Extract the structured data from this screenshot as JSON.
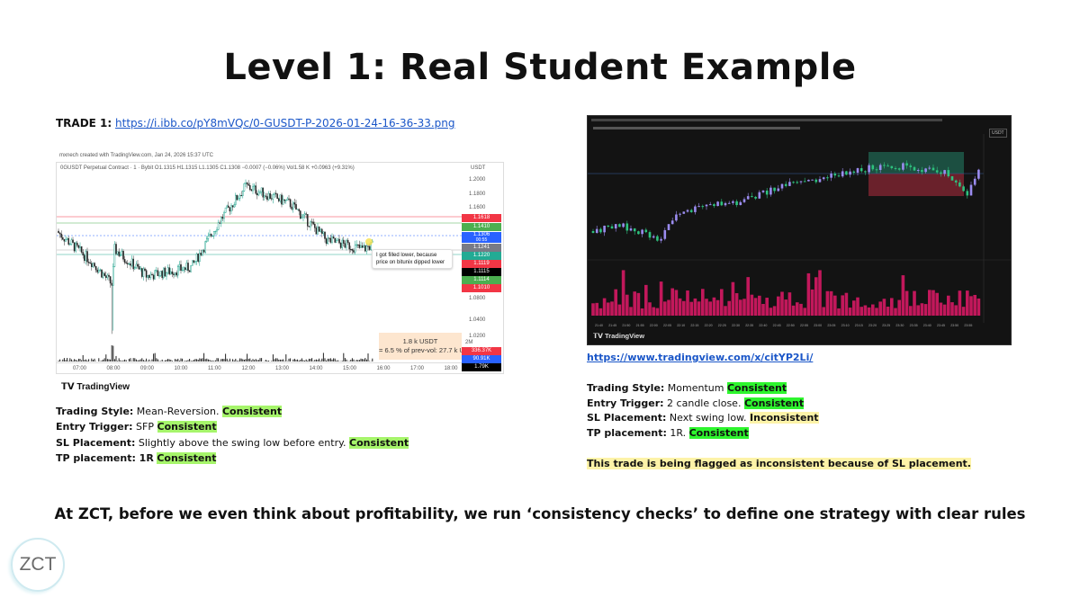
{
  "title": "Level 1: Real Student Example",
  "trade1": {
    "label": "TRADE 1:",
    "link": "https://i.ibb.co/pY8mVQc/0-GUSDT-P-2026-01-24-16-36-33.png"
  },
  "left_chart": {
    "credit": "mxnech created with TradingView.com, Jan 24, 2026 15:37 UTC",
    "symbol_line": "0GUSDT Perpetual Contract · 1 · Bybit  O1.1315  H1.1315  L1.1305  C1.1308  −0.0007 (−0.06%)  Vol1.58 K  +0.0963 (+9.31%)",
    "currency": "USDT",
    "y_ticks": [
      "1.2000",
      "1.1800",
      "1.1600",
      "1.0800",
      "1.0400",
      "1.0200"
    ],
    "price_tags": [
      {
        "text": "1.1618",
        "color": "#f23645"
      },
      {
        "text": "1.1410",
        "color": "#4caf50"
      },
      {
        "text": "1.1306",
        "sub": "00:55",
        "color": "#2962ff"
      },
      {
        "text": "1.1241",
        "color": "#787b86"
      },
      {
        "text": "1.1220",
        "color": "#22ab94"
      },
      {
        "text": "1.1119",
        "color": "#f23645"
      },
      {
        "text": "1.1115",
        "color": "#000000"
      },
      {
        "text": "1.1114",
        "color": "#4caf50"
      },
      {
        "text": "1.1010",
        "color": "#f23645"
      }
    ],
    "annotation": "I got filled lower, because price on bitunix dipped lower",
    "volume_box": {
      "line1": "1.8 k USDT",
      "line2": "= 6.5 % of prev-vol: 27.7 k U"
    },
    "volume_ticks": [
      {
        "text": "2M",
        "color": ""
      },
      {
        "text": "336.37K",
        "color": "#f23645"
      },
      {
        "text": "90.91K",
        "color": "#2962ff"
      },
      {
        "text": "1.79K",
        "color": "#000000"
      }
    ],
    "x_ticks": [
      "07:00",
      "08:00",
      "09:00",
      "10:00",
      "11:00",
      "12:00",
      "13:00",
      "14:00",
      "15:00",
      "16:00",
      "17:00",
      "18:00"
    ],
    "brand": "TradingView"
  },
  "left_notes": [
    {
      "label": "Trading Style:",
      "text": " Mean-Reversion. ",
      "status": "Consistent"
    },
    {
      "label": "Entry Trigger:",
      "text": " SFP ",
      "status": "Consistent"
    },
    {
      "label": "SL Placement:",
      "text": " Slightly above the swing low before entry. ",
      "status": "Consistent"
    },
    {
      "label": "TP placement: 1R",
      "text": " ",
      "status": "Consistent"
    }
  ],
  "right_chart": {
    "currency": "USDT",
    "x_ticks": [
      "21:40",
      "21:45",
      "21:50",
      "21:55",
      "22:00",
      "22:05",
      "22:10",
      "22:15",
      "22:20",
      "22:25",
      "22:30",
      "22:35",
      "22:40",
      "22:45",
      "22:50",
      "22:55",
      "23:00",
      "23:05",
      "23:10",
      "23:15",
      "23:20",
      "23:25",
      "23:30",
      "23:35",
      "23:40",
      "23:45",
      "23:50",
      "23:55"
    ],
    "brand": "TradingView",
    "colors": {
      "background": "#131313",
      "up": "#9b8cf0",
      "down": "#2ec27e",
      "volume": "#c2185b",
      "tp_zone": "#1f5a4a",
      "sl_zone": "#7a2430"
    }
  },
  "right_link": "https://www.tradingview.com/x/citYP2Li/",
  "right_notes": [
    {
      "label": "Trading Style:",
      "text": " Momentum ",
      "status": "Consistent",
      "kind": "ok"
    },
    {
      "label": "Entry Trigger:",
      "text": " 2 candle close. ",
      "status": "Consistent",
      "kind": "ok"
    },
    {
      "label": "SL Placement:",
      "text": " Next swing low. ",
      "status": "Inconsistent",
      "kind": "bad"
    },
    {
      "label": "TP placement:",
      "text": " 1R. ",
      "status": "Consistent",
      "kind": "ok"
    }
  ],
  "flag_text": "This trade is being flagged as inconsistent because of SL placement.",
  "footer": "At ZCT, before we even think about profitability, we run ‘consistency checks’ to define one strategy with clear rules",
  "logo": "ZCT"
}
